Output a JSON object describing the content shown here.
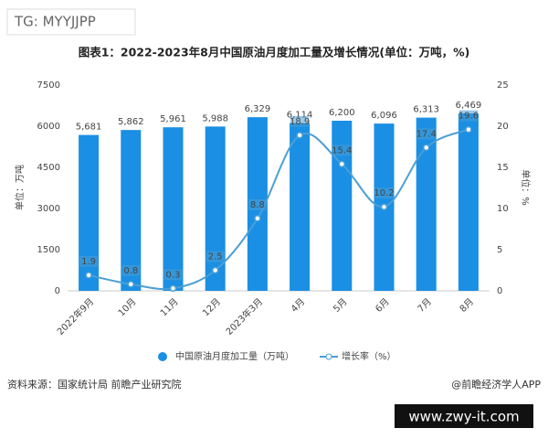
{
  "watermark": "TG: MYYJJPP",
  "source": "资料来源：国家统计局 前瞻产业研究院",
  "credit": "@前瞻经济学人APP",
  "site": "www.zwy-it.com",
  "chart_data": {
    "type": "bar-line",
    "title": "图表1：2022-2023年8月中国原油月度加工量及增长情况(单位：万吨，%)",
    "ylabel": "单位：万吨",
    "y2label": "单位：%",
    "categories": [
      "2022年9月",
      "10月",
      "11月",
      "12月",
      "2023年3月",
      "4月",
      "5月",
      "6月",
      "7月",
      "8月"
    ],
    "series": [
      {
        "name": "中国原油月度加工量（万吨）",
        "type": "bar",
        "color": "#1a8fe3",
        "values": [
          5681,
          5862,
          5961,
          5988,
          6329,
          6114,
          6200,
          6096,
          6313,
          6469
        ],
        "value_labels": [
          "5,681",
          "5,862",
          "5,961",
          "5,988",
          "6,329",
          "6,114",
          "6,200",
          "6,096",
          "6,313",
          "6,469"
        ]
      },
      {
        "name": "增长率（%）",
        "type": "line",
        "axis": "y2",
        "color": "#4b9fd5",
        "values": [
          1.9,
          0.8,
          0.3,
          2.5,
          8.8,
          18.9,
          15.4,
          10.2,
          17.4,
          19.6
        ]
      }
    ],
    "ylim": [
      0,
      7500
    ],
    "yticks": [
      0,
      1500,
      3000,
      4500,
      6000,
      7500
    ],
    "y2lim": [
      0,
      25
    ],
    "y2ticks": [
      0,
      5,
      10,
      15,
      20,
      25
    ],
    "grid": false
  }
}
